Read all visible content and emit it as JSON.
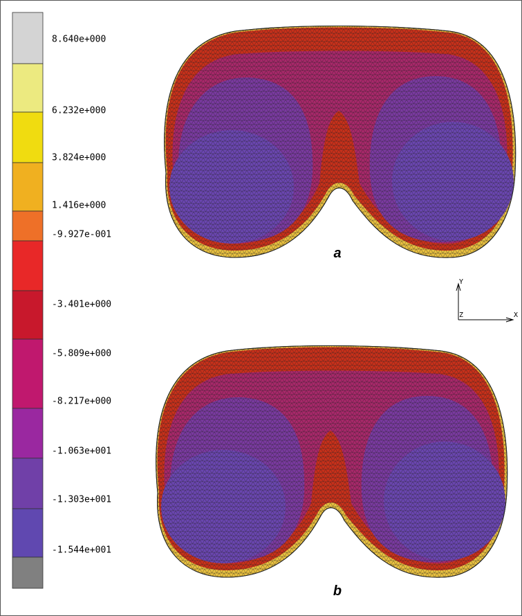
{
  "legend": {
    "labels": [
      "8.640e+000",
      "6.232e+000",
      "3.824e+000",
      "1.416e+000",
      "-9.927e-001",
      "-3.401e+000",
      "-5.809e+000",
      "-8.217e+000",
      "-1.063e+001",
      "-1.303e+001",
      "-1.544e+001"
    ]
  },
  "panels": [
    {
      "label": "a"
    },
    {
      "label": "b"
    }
  ],
  "axes": {
    "y": "Y",
    "z": "Z",
    "x": "X"
  }
}
